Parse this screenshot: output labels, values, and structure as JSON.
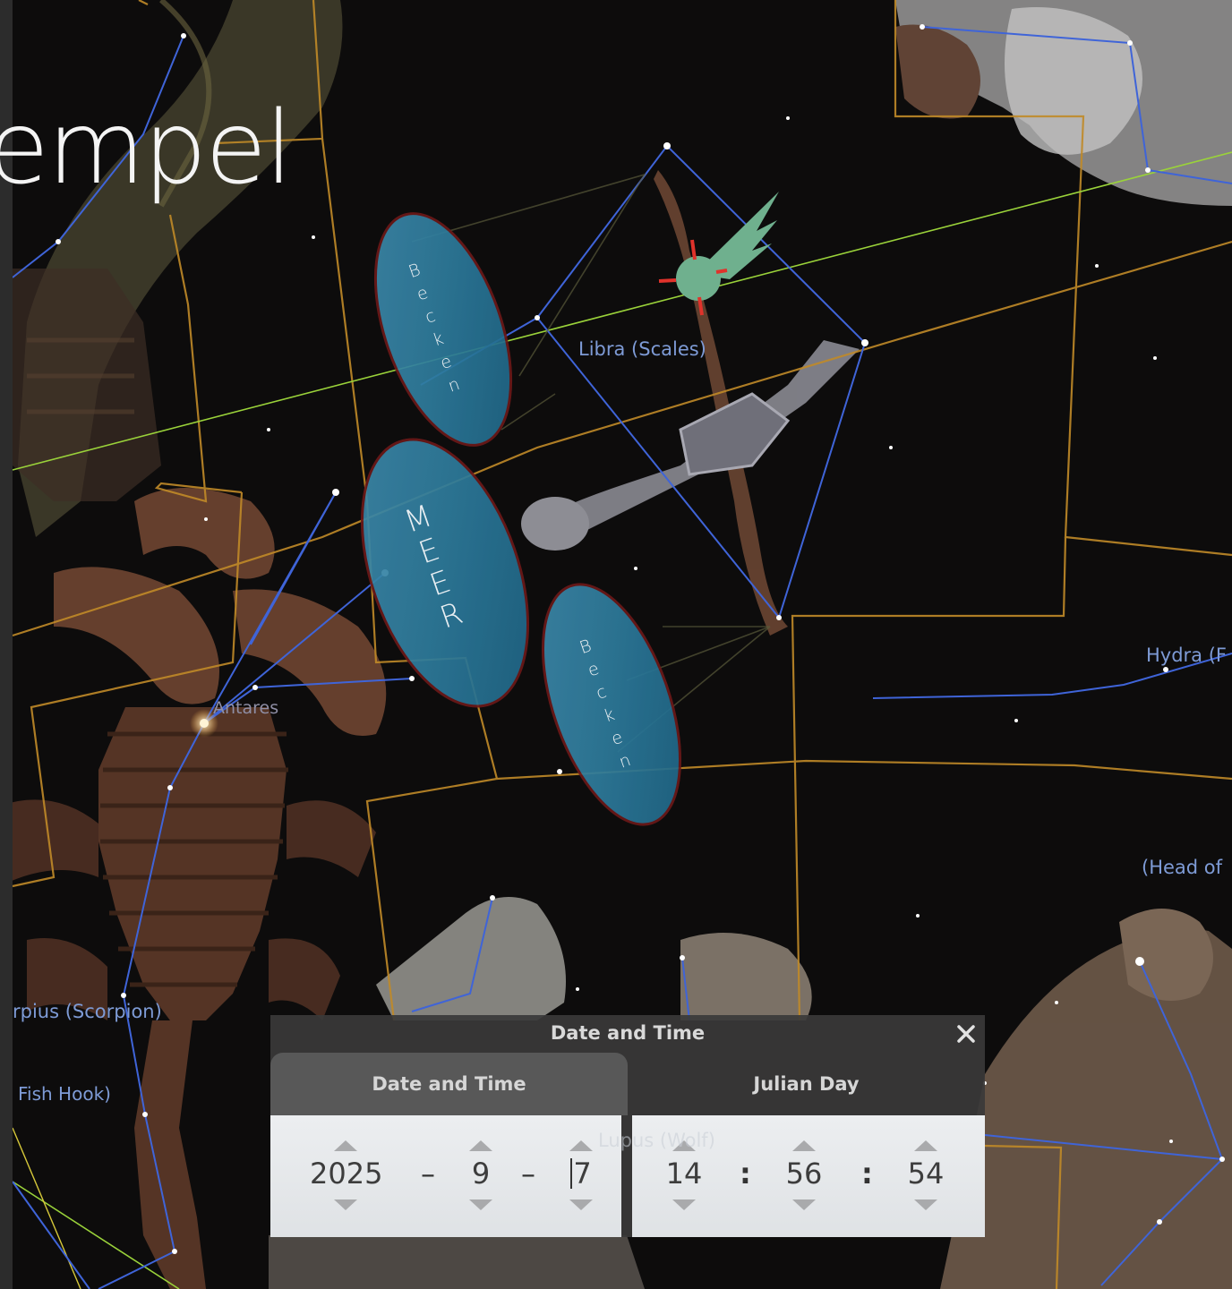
{
  "slide": {
    "title_fragment": "empel"
  },
  "sky_labels": {
    "libra": "Libra (Scales)",
    "hydra": "Hydra (F",
    "head_of": "(Head of",
    "antares": "Antares",
    "scorpius": "rpius (Scorpion)",
    "fish_hook": "Fish Hook)",
    "lupus": "Lupus (Wolf)"
  },
  "basins": {
    "upper": [
      "B",
      "e",
      "c",
      "k",
      "e",
      "n"
    ],
    "center": [
      "M",
      "E",
      "E",
      "R"
    ],
    "lower": [
      "B",
      "e",
      "c",
      "k",
      "e",
      "n"
    ]
  },
  "comet_icon": "comet-icon",
  "dialog": {
    "title": "Date and Time",
    "close_icon": "close-icon",
    "tabs": {
      "date_time": "Date and Time",
      "julian_day": "Julian Day"
    },
    "date": {
      "year": "2025",
      "month": "9",
      "day": "7",
      "separator": "–"
    },
    "time": {
      "hour": "14",
      "minute": "56",
      "second": "54",
      "separator": ":"
    }
  }
}
